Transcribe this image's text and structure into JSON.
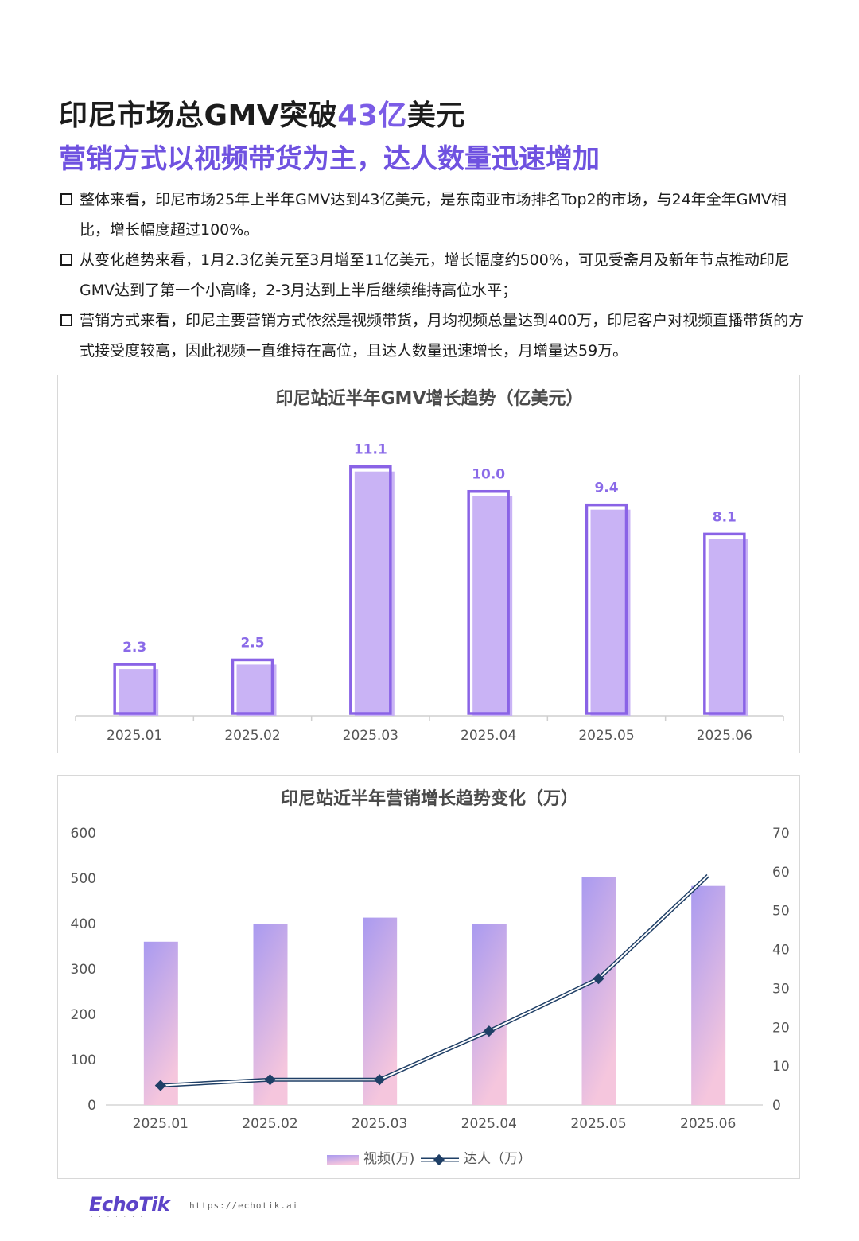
{
  "header": {
    "title_part1": "印尼市场总GMV突破",
    "title_highlight": "43亿",
    "title_part2": "美元",
    "subtitle": "营销方式以视频带货为主，达人数量迅速增加"
  },
  "bullets": [
    "整体来看，印尼市场25年上半年GMV达到43亿美元，是东南亚市场排名Top2的市场，与24年全年GMV相比，增长幅度超过100%。",
    "从变化趋势来看，1月2.3亿美元至3月增至11亿美元，增长幅度约500%，可见受斋月及新年节点推动印尼GMV达到了第一个小高峰，2-3月达到上半后继续维持高位水平；",
    "营销方式来看，印尼主要营销方式依然是视频带货，月均视频总量达到400万，印尼客户对视频直播带货的方式接受度较高，因此视频一直维持在高位，且达人数量迅速增长，月增量达59万。"
  ],
  "chart_data": [
    {
      "type": "bar",
      "title": "印尼站近半年GMV增长趋势（亿美元）",
      "categories": [
        "2025.01",
        "2025.02",
        "2025.03",
        "2025.04",
        "2025.05",
        "2025.06"
      ],
      "values": [
        2.3,
        2.5,
        11.1,
        10.0,
        9.4,
        8.1
      ],
      "value_labels": [
        "2.3",
        "2.5",
        "11.1",
        "10.0",
        "9.4",
        "8.1"
      ],
      "ylim": [
        0,
        12.4
      ],
      "grid": false,
      "colors": {
        "bar_fill": "#c9b3f5",
        "bar_outline": "#8a63e6",
        "label": "#8a6ae8"
      }
    },
    {
      "type": "bar",
      "title": "印尼站近半年营销增长趋势变化（万）",
      "categories": [
        "2025.01",
        "2025.02",
        "2025.03",
        "2025.04",
        "2025.05",
        "2025.06"
      ],
      "left_axis": {
        "ticks": [
          "0",
          "100",
          "200",
          "300",
          "400",
          "500",
          "600"
        ],
        "ylim": [
          0,
          600
        ]
      },
      "right_axis": {
        "ticks": [
          "0",
          "10",
          "20",
          "30",
          "40",
          "50",
          "60",
          "70"
        ],
        "ylim": [
          0,
          70
        ]
      },
      "series": [
        {
          "name": "视频(万)",
          "type": "bar",
          "axis": "left",
          "values": [
            360,
            400,
            413,
            400,
            502,
            483
          ]
        },
        {
          "name": "达人（万）",
          "type": "line",
          "axis": "right",
          "values": [
            5,
            6.5,
            6.5,
            19,
            32.5,
            59
          ]
        }
      ],
      "legend": "bottom",
      "grid": false,
      "colors": {
        "bar_top": "#a99af0",
        "bar_bottom": "#f5c6dd",
        "line": "#1f3f66"
      }
    }
  ],
  "footer": {
    "logo": "EchoTik",
    "logo_sub": "· · · · · · ·",
    "url": "https://echotik.ai"
  }
}
